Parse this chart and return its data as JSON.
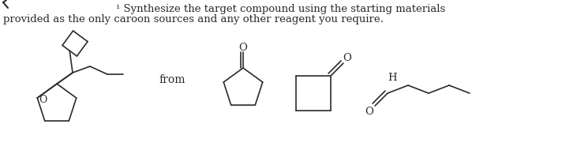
{
  "title_line1": "¹ Synthesize the target compound using the starting materials",
  "title_line2": "provided as the only caroon sources and any other reagent you require.",
  "from_label": "from",
  "bg_color": "#ffffff",
  "line_color": "#2a2a2a",
  "text_color": "#2a2a2a",
  "fig_width": 7.12,
  "fig_height": 2.01,
  "dpi": 100
}
